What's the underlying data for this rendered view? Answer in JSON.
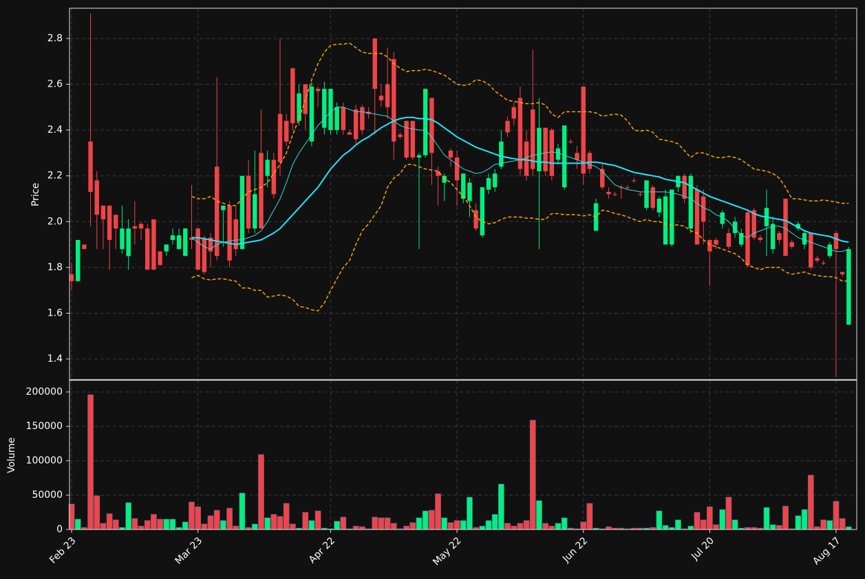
{
  "chart_data": {
    "type": "candlestick",
    "ylabel": "Price",
    "ylim": [
      1.31,
      2.932
    ],
    "yticks": [
      1.4,
      1.6,
      1.8,
      {
        "value": 2,
        "label": "2.0"
      },
      2.2,
      2.4,
      2.6,
      2.8
    ],
    "grid": true,
    "up_color": "#00f080",
    "down_color": "#f04448",
    "categories": [
      "Feb 23",
      null,
      null,
      null,
      null,
      null,
      null,
      null,
      null,
      null,
      null,
      null,
      null,
      null,
      null,
      null,
      null,
      null,
      null,
      null,
      "Mar 23",
      null,
      null,
      null,
      null,
      null,
      null,
      null,
      null,
      null,
      null,
      null,
      null,
      null,
      null,
      null,
      null,
      null,
      null,
      null,
      null,
      "Apr 22",
      null,
      null,
      null,
      null,
      null,
      null,
      null,
      null,
      null,
      null,
      null,
      null,
      null,
      null,
      null,
      null,
      null,
      null,
      null,
      "May 22",
      null,
      null,
      null,
      null,
      null,
      null,
      null,
      null,
      null,
      null,
      null,
      null,
      null,
      null,
      null,
      null,
      null,
      null,
      null,
      "Jun 22",
      null,
      null,
      null,
      null,
      null,
      null,
      null,
      null,
      null,
      null,
      null,
      null,
      null,
      null,
      null,
      null,
      null,
      null,
      null,
      "Jul 20",
      null,
      null,
      null,
      null,
      null,
      null,
      null,
      null,
      null,
      null,
      null,
      null,
      null,
      null,
      null,
      null,
      null,
      null,
      null,
      "Aug 17",
      null,
      null
    ],
    "open": [
      1.77,
      1.74,
      1.9,
      2.35,
      2.18,
      2.07,
      2.07,
      2.03,
      1.88,
      1.85,
      1.98,
      1.99,
      1.97,
      2.01,
      1.87,
      1.87,
      1.92,
      1.88,
      1.85,
      1.93,
      1.97,
      1.93,
      1.93,
      2.24,
      2.05,
      2.07,
      2.01,
      1.88,
      2.2,
      1.97,
      2.3,
      2.2,
      2.27,
      2.47,
      2.44,
      2.67,
      2.44,
      2.6,
      2.35,
      2.58,
      2.41,
      2.4,
      2.4,
      2.5,
      2.39,
      2.49,
      2.5,
      2.48,
      2.8,
      2.55,
      2.6,
      2.71,
      2.38,
      2.44,
      2.44,
      2.28,
      2.29,
      2.54,
      2.22,
      2.17,
      2.31,
      2.28,
      2.1,
      2.09,
      2.05,
      1.94,
      2.14,
      2.15,
      2.24,
      2.44,
      2.5,
      2.54,
      2.35,
      2.49,
      2.22,
      2.41,
      2.4,
      2.27,
      2.15,
      2.35,
      2.3,
      2.59,
      2.3,
      1.96,
      2.23,
      2.13,
      2.12,
      2.15,
      2.15,
      2.18,
      2.12,
      2.06,
      2.15,
      2.04,
      1.9,
      1.9,
      2.15,
      2.2,
      1.97,
      2.14,
      2.11,
      1.92,
      1.92,
      1.99,
      1.95,
      1.95,
      1.9,
      2.04,
      2.05,
      1.93,
      1.98,
      1.88,
      1.95,
      2.1,
      1.91,
      1.97,
      1.9,
      1.95,
      1.84,
      1.82,
      1.85,
      1.95,
      1.78,
      1.55
    ],
    "high": [
      1.82,
      1.92,
      1.9,
      2.91,
      2.22,
      2.07,
      2.07,
      2.03,
      2.07,
      2.01,
      2.09,
      2.0,
      1.99,
      2.01,
      1.87,
      1.9,
      1.97,
      1.97,
      1.97,
      2.16,
      1.97,
      1.94,
      1.95,
      2.63,
      2.07,
      2.09,
      2.07,
      2.2,
      2.27,
      2.31,
      2.49,
      2.31,
      2.3,
      2.8,
      2.47,
      2.67,
      2.6,
      2.6,
      2.61,
      2.59,
      2.61,
      2.58,
      2.52,
      2.52,
      2.4,
      2.51,
      2.51,
      2.5,
      2.8,
      2.6,
      2.76,
      2.74,
      2.39,
      2.44,
      2.44,
      2.3,
      2.58,
      2.54,
      2.24,
      2.21,
      2.32,
      2.31,
      2.21,
      2.19,
      2.08,
      2.15,
      2.21,
      2.23,
      2.4,
      2.46,
      2.52,
      2.59,
      2.4,
      2.75,
      2.54,
      2.41,
      2.41,
      2.34,
      2.42,
      2.36,
      2.33,
      2.59,
      2.31,
      2.1,
      2.25,
      2.15,
      2.13,
      2.16,
      2.16,
      2.19,
      2.13,
      2.18,
      2.16,
      2.11,
      2.14,
      2.14,
      2.2,
      2.21,
      2.21,
      2.16,
      2.14,
      1.92,
      1.93,
      2.05,
      1.97,
      2.02,
      1.97,
      2.05,
      2.06,
      1.94,
      2.14,
      2.02,
      1.96,
      2.1,
      1.92,
      2.0,
      1.96,
      1.95,
      1.85,
      1.83,
      1.91,
      1.96,
      1.78,
      1.89
    ],
    "low": [
      1.7,
      1.74,
      1.88,
      1.98,
      1.88,
      1.88,
      1.79,
      1.88,
      1.86,
      1.79,
      1.9,
      1.92,
      1.79,
      1.79,
      1.81,
      1.85,
      1.9,
      1.88,
      1.85,
      1.88,
      1.79,
      1.77,
      1.8,
      1.83,
      1.89,
      1.8,
      1.85,
      1.88,
      1.95,
      1.95,
      1.97,
      2.15,
      2.1,
      2.2,
      2.33,
      2.4,
      2.42,
      2.4,
      2.33,
      2.5,
      2.38,
      2.38,
      2.38,
      2.38,
      2.38,
      2.34,
      2.38,
      2.45,
      2.38,
      2.5,
      2.45,
      2.27,
      2.36,
      2.27,
      2.27,
      1.88,
      2.28,
      2.16,
      2.07,
      2.09,
      2.24,
      2.07,
      2.08,
      2.02,
      1.96,
      1.93,
      2.12,
      2.13,
      2.23,
      2.37,
      2.42,
      2.2,
      2.18,
      2.2,
      1.88,
      2.2,
      2.18,
      2.25,
      2.14,
      2.34,
      2.23,
      2.16,
      2.21,
      1.96,
      2.14,
      2.1,
      2.11,
      2.1,
      2.14,
      2.17,
      2.11,
      2.05,
      2.05,
      2.02,
      1.9,
      1.89,
      2.13,
      2.08,
      1.95,
      1.9,
      1.9,
      1.72,
      1.88,
      1.97,
      1.88,
      1.93,
      1.89,
      1.8,
      1.92,
      1.91,
      1.85,
      1.86,
      1.9,
      1.85,
      1.88,
      1.96,
      1.88,
      1.79,
      1.82,
      1.81,
      1.84,
      1.32,
      1.76,
      1.55
    ],
    "close": [
      1.74,
      1.92,
      1.88,
      2.13,
      2.03,
      2.01,
      1.92,
      1.97,
      1.97,
      1.97,
      1.97,
      1.97,
      1.79,
      1.79,
      1.81,
      1.9,
      1.94,
      1.94,
      1.97,
      1.92,
      1.79,
      1.78,
      1.87,
      1.85,
      2.07,
      1.83,
      1.88,
      2.2,
      1.97,
      2.12,
      1.97,
      2.27,
      2.12,
      2.26,
      2.35,
      2.43,
      2.56,
      2.47,
      2.59,
      2.57,
      2.58,
      2.58,
      2.5,
      2.4,
      2.38,
      2.36,
      2.4,
      2.47,
      2.58,
      2.53,
      2.5,
      2.35,
      2.37,
      2.28,
      2.28,
      2.29,
      2.58,
      2.3,
      2.2,
      2.2,
      2.28,
      2.18,
      2.21,
      2.17,
      1.97,
      2.15,
      2.19,
      2.21,
      2.35,
      2.39,
      2.45,
      2.23,
      2.2,
      2.23,
      2.41,
      2.22,
      2.2,
      2.32,
      2.42,
      2.35,
      2.27,
      2.21,
      2.23,
      2.08,
      2.15,
      2.12,
      2.12,
      2.15,
      2.15,
      2.18,
      2.12,
      2.18,
      2.06,
      2.1,
      2.11,
      2.14,
      2.2,
      2.1,
      2.2,
      1.9,
      2.0,
      1.87,
      1.9,
      2.04,
      1.89,
      2.0,
      1.95,
      1.81,
      1.93,
      1.92,
      2.06,
      1.99,
      1.92,
      1.85,
      1.89,
      1.99,
      1.95,
      1.8,
      1.83,
      1.82,
      1.9,
      1.88,
      1.77,
      1.88
    ],
    "overlays": [
      {
        "color": "#1ee6ff",
        "width": 2,
        "dashed": false,
        "values": [
          null,
          null,
          null,
          null,
          null,
          null,
          null,
          null,
          null,
          null,
          null,
          null,
          null,
          null,
          null,
          null,
          null,
          null,
          null,
          1.93,
          1.93,
          1.925,
          1.92,
          1.915,
          1.91,
          1.905,
          1.9,
          1.905,
          1.91,
          1.915,
          1.92,
          1.935,
          1.95,
          1.97,
          2.0,
          2.03,
          2.06,
          2.09,
          2.12,
          2.15,
          2.19,
          2.23,
          2.26,
          2.29,
          2.31,
          2.335,
          2.355,
          2.37,
          2.39,
          2.41,
          2.425,
          2.44,
          2.45,
          2.455,
          2.455,
          2.45,
          2.45,
          2.445,
          2.43,
          2.41,
          2.39,
          2.37,
          2.355,
          2.34,
          2.325,
          2.315,
          2.305,
          2.295,
          2.285,
          2.28,
          2.275,
          2.27,
          2.27,
          2.265,
          2.26,
          2.26,
          2.255,
          2.255,
          2.255,
          2.255,
          2.255,
          2.255,
          2.26,
          2.26,
          2.255,
          2.25,
          2.245,
          2.235,
          2.225,
          2.215,
          2.21,
          2.205,
          2.2,
          2.195,
          2.185,
          2.18,
          2.175,
          2.17,
          2.155,
          2.14,
          2.125,
          2.11,
          2.1,
          2.09,
          2.08,
          2.07,
          2.06,
          2.05,
          2.035,
          2.025,
          2.02,
          2.015,
          2.01,
          2.005,
          1.99,
          1.975,
          1.96,
          1.95,
          1.945,
          1.94,
          1.935,
          1.925,
          1.915,
          1.91
        ]
      },
      {
        "color": "#40d8d8",
        "width": 1,
        "dashed": false,
        "values": [
          null,
          null,
          null,
          null,
          null,
          null,
          null,
          null,
          null,
          null,
          null,
          null,
          null,
          null,
          null,
          null,
          null,
          null,
          null,
          1.93,
          1.91,
          1.89,
          1.88,
          1.9,
          1.91,
          1.915,
          1.92,
          1.92,
          1.93,
          1.94,
          1.96,
          2.0,
          2.05,
          2.1,
          2.17,
          2.25,
          2.3,
          2.34,
          2.38,
          2.42,
          2.45,
          2.48,
          2.5,
          2.5,
          2.49,
          2.48,
          2.48,
          2.475,
          2.47,
          2.465,
          2.46,
          2.44,
          2.42,
          2.41,
          2.405,
          2.4,
          2.4,
          2.37,
          2.33,
          2.29,
          2.27,
          2.25,
          2.23,
          2.22,
          2.21,
          2.215,
          2.23,
          2.25,
          2.255,
          2.26,
          2.265,
          2.27,
          2.28,
          2.29,
          2.295,
          2.3,
          2.305,
          2.3,
          2.29,
          2.28,
          2.27,
          2.26,
          2.25,
          2.24,
          2.22,
          2.19,
          2.16,
          2.15,
          2.14,
          2.135,
          2.13,
          2.13,
          2.13,
          2.13,
          2.13,
          2.125,
          2.12,
          2.11,
          2.1,
          2.08,
          2.06,
          2.05,
          2.03,
          2.02,
          2.0,
          1.97,
          1.94,
          1.93,
          1.95,
          1.96,
          1.97,
          1.98,
          1.98,
          1.97,
          1.95,
          1.93,
          1.92,
          1.91,
          1.9,
          1.89,
          1.88,
          1.87,
          1.87,
          1.88
        ]
      },
      {
        "color": "#ffa500",
        "width": 1.5,
        "dashed": true,
        "values": [
          null,
          null,
          null,
          null,
          null,
          null,
          null,
          null,
          null,
          null,
          null,
          null,
          null,
          null,
          null,
          null,
          null,
          null,
          null,
          2.11,
          2.1,
          2.1,
          2.11,
          2.09,
          2.08,
          2.07,
          2.07,
          2.1,
          2.13,
          2.14,
          2.15,
          2.17,
          2.21,
          2.25,
          2.3,
          2.38,
          2.45,
          2.53,
          2.62,
          2.69,
          2.74,
          2.77,
          2.775,
          2.775,
          2.78,
          2.76,
          2.74,
          2.735,
          2.735,
          2.735,
          2.72,
          2.69,
          2.67,
          2.655,
          2.66,
          2.66,
          2.665,
          2.66,
          2.65,
          2.64,
          2.62,
          2.6,
          2.595,
          2.6,
          2.62,
          2.615,
          2.6,
          2.57,
          2.55,
          2.53,
          2.525,
          2.52,
          2.515,
          2.515,
          2.52,
          2.51,
          2.47,
          2.455,
          2.48,
          2.48,
          2.48,
          2.48,
          2.48,
          2.475,
          2.46,
          2.465,
          2.47,
          2.465,
          2.44,
          2.4,
          2.395,
          2.4,
          2.39,
          2.36,
          2.355,
          2.35,
          2.34,
          2.31,
          2.28,
          2.3,
          2.3,
          2.29,
          2.28,
          2.28,
          2.285,
          2.28,
          2.27,
          2.25,
          2.23,
          2.225,
          2.22,
          2.21,
          2.19,
          2.15,
          2.1,
          2.1,
          2.095,
          2.09,
          2.09,
          2.095,
          2.09,
          2.085,
          2.08,
          2.08
        ]
      },
      {
        "color": "#ffa500",
        "width": 1.5,
        "dashed": true,
        "values": [
          null,
          null,
          null,
          null,
          null,
          null,
          null,
          null,
          null,
          null,
          null,
          null,
          null,
          null,
          null,
          null,
          null,
          null,
          null,
          1.755,
          1.765,
          1.75,
          1.745,
          1.75,
          1.75,
          1.745,
          1.74,
          1.71,
          1.71,
          1.7,
          1.7,
          1.67,
          1.675,
          1.68,
          1.675,
          1.66,
          1.63,
          1.625,
          1.615,
          1.61,
          1.645,
          1.7,
          1.75,
          1.8,
          1.83,
          1.9,
          1.96,
          1.99,
          2.03,
          2.07,
          2.15,
          2.19,
          2.21,
          2.25,
          2.25,
          2.24,
          2.23,
          2.225,
          2.22,
          2.19,
          2.17,
          2.14,
          2.11,
          2.07,
          2.02,
          2.0,
          1.99,
          1.995,
          2.01,
          2.02,
          2.02,
          2.02,
          2.015,
          2.015,
          2.01,
          2.01,
          2.035,
          2.035,
          2.03,
          2.03,
          2.03,
          2.025,
          2.03,
          2.02,
          2.05,
          2.045,
          2.035,
          2.03,
          2.02,
          2.01,
          2.0,
          2.01,
          2.0,
          2.0,
          1.99,
          1.985,
          1.985,
          1.98,
          1.96,
          1.95,
          1.92,
          1.9,
          1.89,
          1.88,
          1.87,
          1.86,
          1.84,
          1.81,
          1.8,
          1.79,
          1.8,
          1.8,
          1.8,
          1.78,
          1.77,
          1.775,
          1.78,
          1.77,
          1.765,
          1.76,
          1.76,
          1.755,
          1.74,
          1.74
        ]
      }
    ],
    "volume": {
      "ylabel": "Volume",
      "ylim": [
        0,
        217000
      ],
      "yticks": [
        0,
        50000,
        100000,
        150000,
        200000
      ],
      "values": [
        37000,
        15000,
        3000,
        196000,
        49000,
        9000,
        23000,
        14000,
        3000,
        39000,
        16000,
        5000,
        13000,
        22000,
        15000,
        15000,
        15000,
        3000,
        11000,
        40000,
        33000,
        8000,
        20000,
        28000,
        13000,
        31000,
        5000,
        53000,
        3000,
        8000,
        109000,
        17000,
        22000,
        19000,
        38000,
        8000,
        2000,
        25000,
        13000,
        27000,
        2000,
        1000,
        12000,
        18000,
        1000,
        5000,
        4000,
        1000,
        18000,
        17000,
        17000,
        9000,
        1000,
        5000,
        10000,
        17000,
        27000,
        28000,
        52000,
        17000,
        10000,
        13000,
        13000,
        47000,
        3000,
        5000,
        13000,
        22000,
        66000,
        9000,
        5000,
        9000,
        13000,
        159000,
        42000,
        9000,
        5000,
        9000,
        17000,
        2000,
        1000,
        11000,
        38000,
        2000,
        1000,
        4000,
        2000,
        2000,
        1000,
        2000,
        2000,
        2000,
        3000,
        27000,
        6000,
        3000,
        14000,
        1000,
        5000,
        25000,
        14000,
        33000,
        7000,
        29000,
        47000,
        14000,
        2000,
        3000,
        3000,
        2000,
        32000,
        7000,
        6000,
        34000,
        1000,
        20000,
        29000,
        79000,
        4000,
        14000,
        13000,
        41000,
        16000,
        4000
      ]
    }
  }
}
